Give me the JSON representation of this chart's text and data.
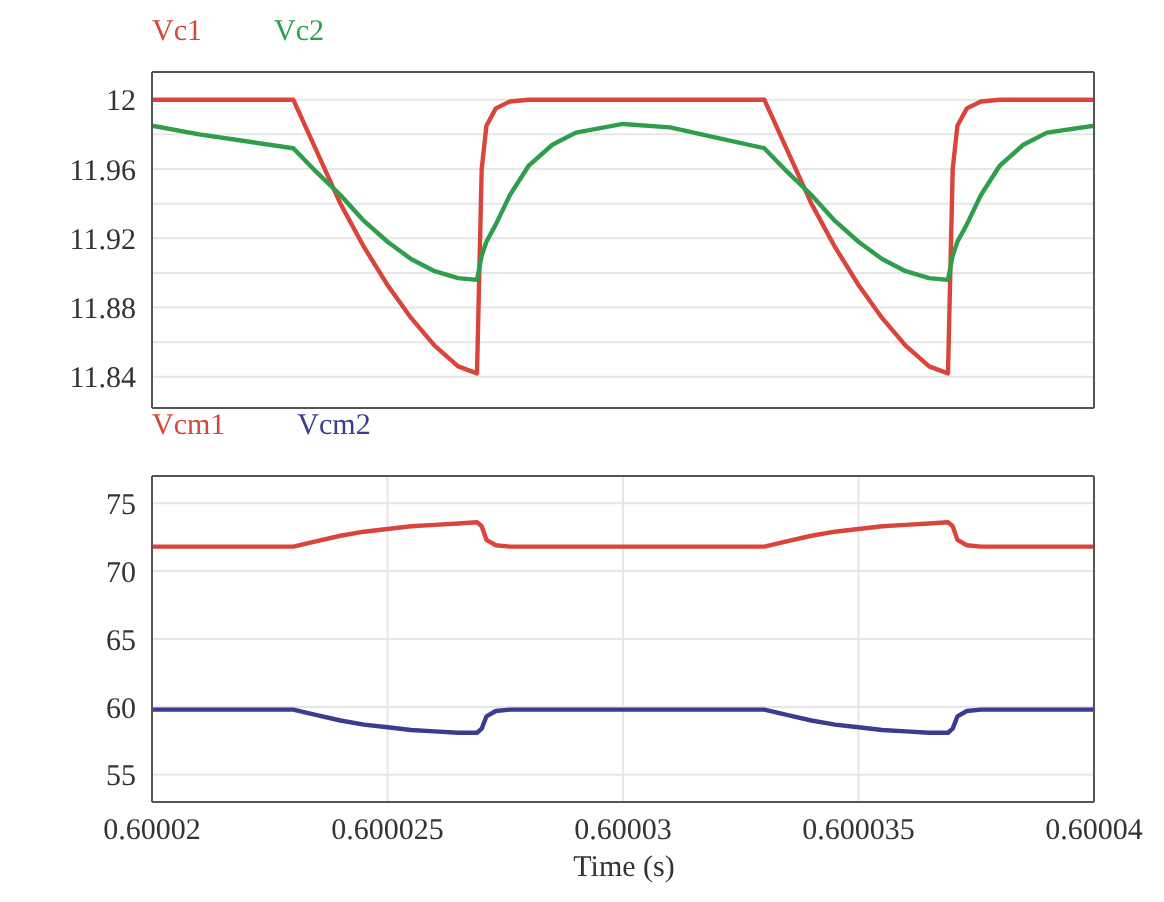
{
  "chart_data": [
    {
      "type": "line",
      "legend": "top left",
      "grid": true,
      "tick_labels": "y",
      "x": [
        0.60002,
        0.600021,
        0.600022,
        0.600023,
        0.6000235,
        0.600024,
        0.6000245,
        0.600025,
        0.6000255,
        0.600026,
        0.6000265,
        0.6000269,
        0.600027,
        0.6000271,
        0.6000273,
        0.6000276,
        0.600028,
        0.6000285,
        0.600029,
        0.60003,
        0.600031,
        0.600032,
        0.600033,
        0.6000335,
        0.600034,
        0.6000345,
        0.600035,
        0.6000355,
        0.600036,
        0.6000365,
        0.6000369,
        0.600037,
        0.6000371,
        0.6000373,
        0.6000376,
        0.600038,
        0.6000385,
        0.600039,
        0.60004
      ],
      "xlim": [
        0.60002,
        0.60004
      ],
      "xticks": [
        0.60002,
        0.600025,
        0.60003,
        0.600035,
        0.60004
      ],
      "ylim": [
        11.822,
        12.016
      ],
      "yticks": [
        11.84,
        {
          "value": 11.86,
          "label": null
        },
        11.88,
        {
          "value": 11.9,
          "label": null
        },
        11.92,
        {
          "value": 11.94,
          "label": null
        },
        11.96,
        {
          "value": 11.98,
          "label": null
        },
        12
      ],
      "series": [
        {
          "name": "Vc1",
          "color": "#d9453b",
          "values": [
            12,
            12,
            12,
            12,
            11.97,
            11.94,
            11.915,
            11.893,
            11.874,
            11.858,
            11.846,
            11.842,
            11.96,
            11.985,
            11.995,
            11.999,
            12,
            12,
            12,
            12,
            12,
            12,
            12,
            11.97,
            11.94,
            11.915,
            11.893,
            11.874,
            11.858,
            11.846,
            11.842,
            11.96,
            11.985,
            11.995,
            11.999,
            12,
            12,
            12,
            12
          ]
        },
        {
          "name": "Vc2",
          "color": "#2e9e4a",
          "values": [
            11.985,
            11.98,
            11.976,
            11.972,
            11.958,
            11.945,
            11.93,
            11.918,
            11.908,
            11.901,
            11.897,
            11.896,
            11.91,
            11.918,
            11.928,
            11.945,
            11.962,
            11.974,
            11.981,
            11.986,
            11.984,
            11.978,
            11.972,
            11.958,
            11.945,
            11.93,
            11.918,
            11.908,
            11.901,
            11.897,
            11.896,
            11.91,
            11.918,
            11.928,
            11.945,
            11.962,
            11.974,
            11.981,
            11.985
          ]
        }
      ]
    },
    {
      "type": "line",
      "legend": "top left",
      "grid": true,
      "xlabel": "Time (s)",
      "x": [
        0.60002,
        0.600021,
        0.600022,
        0.600023,
        0.6000235,
        0.600024,
        0.6000245,
        0.600025,
        0.6000255,
        0.600026,
        0.6000265,
        0.6000269,
        0.600027,
        0.6000271,
        0.6000273,
        0.6000276,
        0.600028,
        0.6000285,
        0.600029,
        0.60003,
        0.600031,
        0.600032,
        0.600033,
        0.6000335,
        0.600034,
        0.6000345,
        0.600035,
        0.6000355,
        0.600036,
        0.6000365,
        0.6000369,
        0.600037,
        0.6000371,
        0.6000373,
        0.6000376,
        0.600038,
        0.6000385,
        0.600039,
        0.60004
      ],
      "xlim": [
        0.60002,
        0.60004
      ],
      "xticks": [
        0.60002,
        0.600025,
        0.60003,
        0.600035,
        0.60004
      ],
      "ylim": [
        53,
        77
      ],
      "yticks": [
        55,
        60,
        65,
        70,
        75
      ],
      "series": [
        {
          "name": "Vcm1",
          "color": "#d9453b",
          "values": [
            71.8,
            71.8,
            71.8,
            71.8,
            72.2,
            72.6,
            72.9,
            73.1,
            73.3,
            73.4,
            73.5,
            73.6,
            73.3,
            72.3,
            71.9,
            71.8,
            71.8,
            71.8,
            71.8,
            71.8,
            71.8,
            71.8,
            71.8,
            72.2,
            72.6,
            72.9,
            73.1,
            73.3,
            73.4,
            73.5,
            73.6,
            73.3,
            72.3,
            71.9,
            71.8,
            71.8,
            71.8,
            71.8,
            71.8
          ]
        },
        {
          "name": "Vcm2",
          "color": "#3b3b8f",
          "values": [
            59.8,
            59.8,
            59.8,
            59.8,
            59.4,
            59,
            58.7,
            58.5,
            58.3,
            58.2,
            58.1,
            58.1,
            58.4,
            59.3,
            59.7,
            59.8,
            59.8,
            59.8,
            59.8,
            59.8,
            59.8,
            59.8,
            59.8,
            59.4,
            59,
            58.7,
            58.5,
            58.3,
            58.2,
            58.1,
            58.1,
            58.4,
            59.3,
            59.7,
            59.8,
            59.8,
            59.8,
            59.8,
            59.8
          ]
        }
      ]
    }
  ]
}
